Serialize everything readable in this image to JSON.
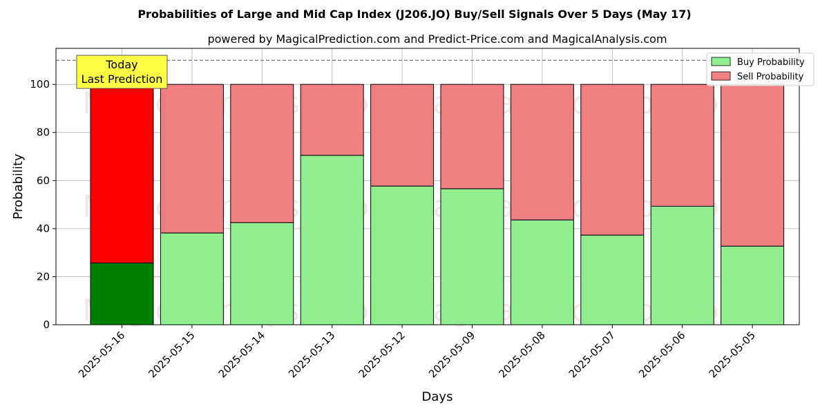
{
  "chart_data": {
    "type": "bar",
    "stacked": true,
    "title": "Probabilities of Large and Mid Cap Index (J206.JO) Buy/Sell Signals Over 5 Days (May 17)",
    "subtitle": "powered by MagicalPrediction.com and Predict-Price.com and MagicalAnalysis.com",
    "xlabel": "Days",
    "ylabel": "Probability",
    "ylim": [
      0,
      115
    ],
    "yticks": [
      0,
      20,
      40,
      60,
      80,
      100
    ],
    "grid": true,
    "legend_position": "top-right",
    "reference_line": 110,
    "categories": [
      "2025-05-16",
      "2025-05-15",
      "2025-05-14",
      "2025-05-13",
      "2025-05-12",
      "2025-05-09",
      "2025-05-08",
      "2025-05-07",
      "2025-05-06",
      "2025-05-05"
    ],
    "series": [
      {
        "name": "Buy Probability",
        "values": [
          25.7,
          38.2,
          42.5,
          70.5,
          57.7,
          56.6,
          43.6,
          37.3,
          49.3,
          32.7
        ]
      },
      {
        "name": "Sell Probability",
        "values": [
          74.3,
          61.8,
          57.5,
          29.5,
          42.3,
          43.4,
          56.4,
          62.7,
          50.7,
          67.3
        ]
      }
    ],
    "colors": {
      "buy": "#90ee90",
      "sell": "#f08080",
      "buy_highlight": "#008000",
      "sell_highlight": "#ff0000",
      "annotation_bg": "#ffff44"
    },
    "annotation": {
      "line1": "Today",
      "line2": "Last Prediction"
    },
    "watermarks": [
      "MagicalAnalysis.com",
      "MagicalPrediction.com"
    ]
  }
}
